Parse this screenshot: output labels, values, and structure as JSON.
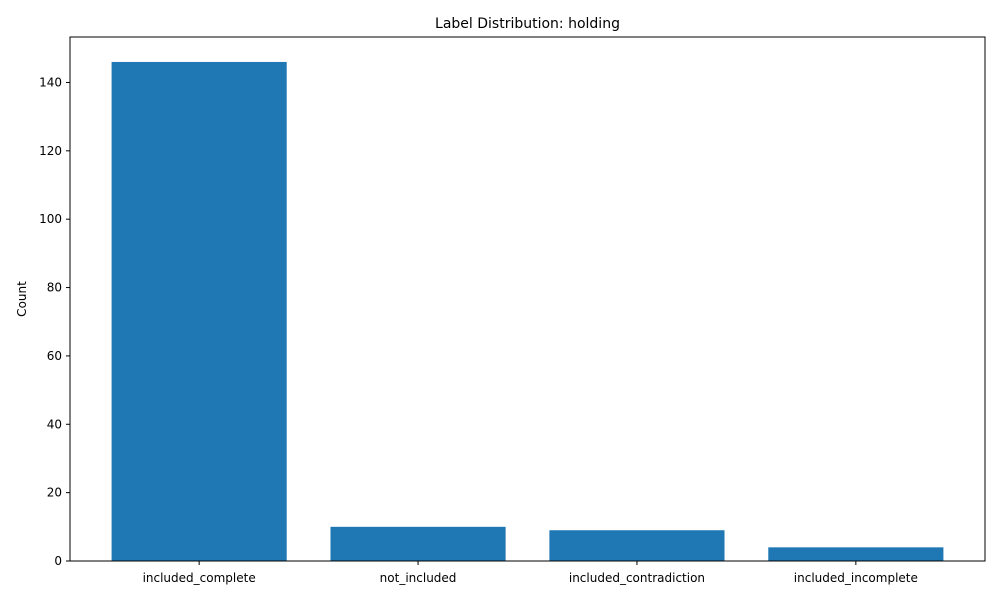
{
  "chart_data": {
    "type": "bar",
    "title": "Label Distribution: holding",
    "xlabel": "",
    "ylabel": "Count",
    "categories": [
      "included_complete",
      "not_included",
      "included_contradiction",
      "included_incomplete"
    ],
    "values": [
      146,
      10,
      9,
      4
    ],
    "ylim": [
      0,
      153.3
    ],
    "yticks": [
      0,
      20,
      40,
      60,
      80,
      100,
      120,
      140
    ],
    "bar_color": "#1f77b4",
    "grid": false,
    "legend": "none"
  }
}
